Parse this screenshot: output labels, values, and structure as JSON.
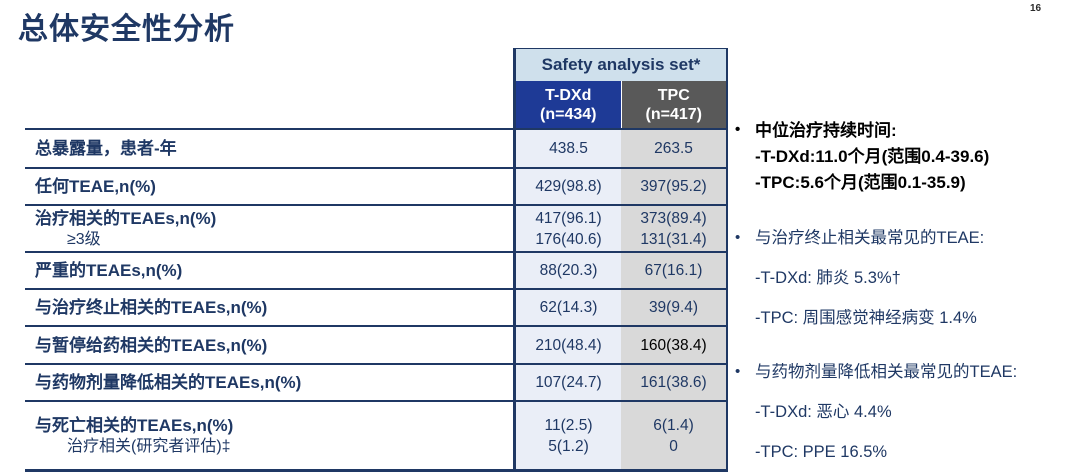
{
  "page": {
    "title": "总体安全性分析",
    "page_number": "16"
  },
  "table": {
    "header": "Safety analysis set*",
    "columns": [
      {
        "name": "T-DXd",
        "n": "(n=434)"
      },
      {
        "name": "TPC",
        "n": "(n=417)"
      }
    ],
    "rows": [
      {
        "label": "总暴露量，患者-年",
        "tdxd": "438.5",
        "tpc": "263.5"
      },
      {
        "label": "任何TEAE,n(%)",
        "tdxd": "429(98.8)",
        "tpc": "397(95.2)"
      },
      {
        "label": "治疗相关的TEAEs,n(%)",
        "sublabel": "≥3级",
        "tdxd": "417(96.1)",
        "tdxd2": "176(40.6)",
        "tpc": "373(89.4)",
        "tpc2": "131(31.4)"
      },
      {
        "label": "严重的TEAEs,n(%)",
        "tdxd": "88(20.3)",
        "tpc": "67(16.1)"
      },
      {
        "label": "与治疗终止相关的TEAEs,n(%)",
        "tdxd": "62(14.3)",
        "tpc": "39(9.4)"
      },
      {
        "label": "与暂停给药相关的TEAEs,n(%)",
        "tdxd": "210(48.4)",
        "tpc": "160(38.4)"
      },
      {
        "label": "与药物剂量降低相关的TEAEs,n(%)",
        "tdxd": "107(24.7)",
        "tpc": "161(38.6)"
      },
      {
        "label": "与死亡相关的TEAEs,n(%)",
        "sublabel": "治疗相关(研究者评估)‡",
        "tdxd": "11(2.5)",
        "tdxd2": "5(1.2)",
        "tpc": "6(1.4)",
        "tpc2": "0"
      }
    ]
  },
  "notes": [
    {
      "bullet": "•",
      "title": "中位治疗持续时间:",
      "line1": "-T-DXd:11.0个月(范围0.4-39.6)",
      "line2": "-TPC:5.6个月(范围0.1-35.9)"
    },
    {
      "bullet": "•",
      "title": "与治疗终止相关最常见的TEAE:",
      "line1": "-T-DXd: 肺炎 5.3%†",
      "line2": "-TPC: 周围感觉神经病变 1.4%"
    },
    {
      "bullet": "•",
      "title": "与药物剂量降低相关最常见的TEAE:",
      "line1": "-T-DXd: 恶心 4.4%",
      "line2": "-TPC: PPE 16.5%"
    }
  ],
  "colors": {
    "navy": "#1f3864",
    "tdxd_header_bg": "#1e3a96",
    "tpc_header_bg": "#595959",
    "safety_header_bg": "#cfe0ec",
    "tdxd_col_bg": "#eaeef7",
    "tpc_col_bg": "#d9d9d9",
    "black_value": "#000000"
  }
}
